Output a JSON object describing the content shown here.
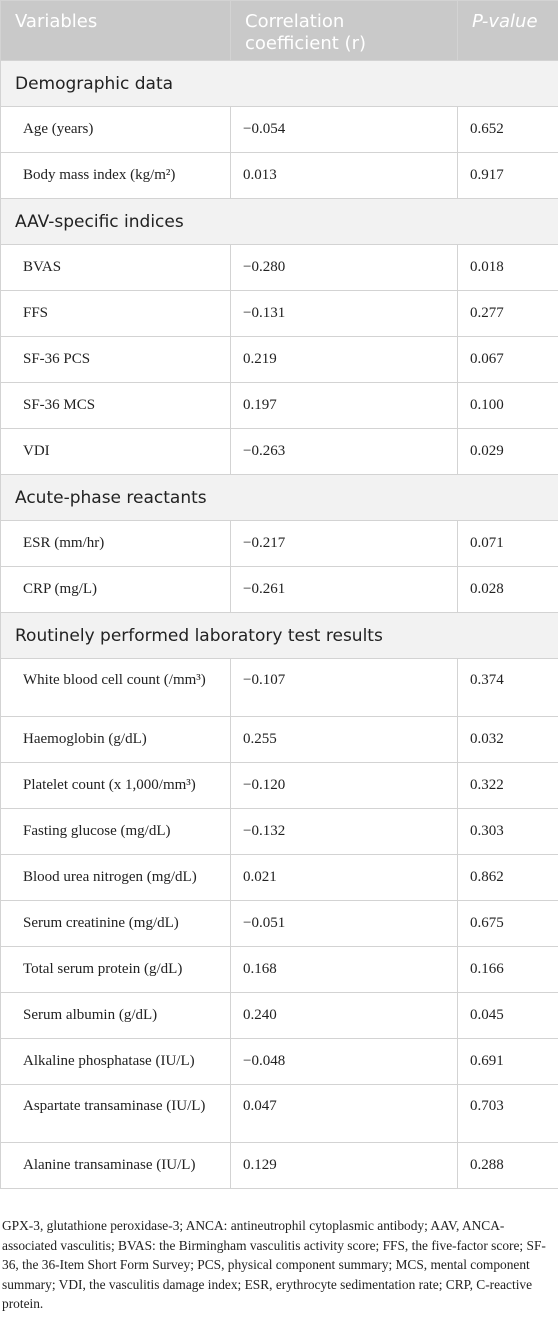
{
  "header": {
    "variables": "Variables",
    "correlation": "Correlation coefficient (r)",
    "pvalue": "P-value"
  },
  "sections": [
    {
      "title": "Demographic data",
      "rows": [
        {
          "label": "Age (years)",
          "r": "−0.054",
          "p": "0.652"
        },
        {
          "label": "Body mass index (kg/m²)",
          "r": "0.013",
          "p": "0.917"
        }
      ]
    },
    {
      "title": "AAV-specific indices",
      "rows": [
        {
          "label": "BVAS",
          "r": "−0.280",
          "p": "0.018"
        },
        {
          "label": "FFS",
          "r": "−0.131",
          "p": "0.277"
        },
        {
          "label": "SF-36 PCS",
          "r": "0.219",
          "p": "0.067"
        },
        {
          "label": "SF-36 MCS",
          "r": "0.197",
          "p": "0.100"
        },
        {
          "label": "VDI",
          "r": "−0.263",
          "p": "0.029"
        }
      ]
    },
    {
      "title": "Acute-phase reactants",
      "rows": [
        {
          "label": "ESR (mm/hr)",
          "r": "−0.217",
          "p": "0.071"
        },
        {
          "label": "CRP (mg/L)",
          "r": "−0.261",
          "p": "0.028"
        }
      ]
    },
    {
      "title": "Routinely performed laboratory test results",
      "rows": [
        {
          "label": "White blood cell count (/mm³)",
          "r": "−0.107",
          "p": "0.374",
          "tall": true
        },
        {
          "label": "Haemoglobin (g/dL)",
          "r": "0.255",
          "p": "0.032"
        },
        {
          "label": "Platelet count (x 1,000/mm³)",
          "r": "−0.120",
          "p": "0.322"
        },
        {
          "label": "Fasting glucose (mg/dL)",
          "r": "−0.132",
          "p": "0.303"
        },
        {
          "label": "Blood urea nitrogen (mg/dL)",
          "r": "0.021",
          "p": "0.862"
        },
        {
          "label": "Serum creatinine (mg/dL)",
          "r": "−0.051",
          "p": "0.675"
        },
        {
          "label": "Total serum protein (g/dL)",
          "r": "0.168",
          "p": "0.166"
        },
        {
          "label": "Serum albumin (g/dL)",
          "r": "0.240",
          "p": "0.045"
        },
        {
          "label": "Alkaline phosphatase (IU/L)",
          "r": "−0.048",
          "p": "0.691"
        },
        {
          "label": "Aspartate transaminase (IU/L)",
          "r": "0.047",
          "p": "0.703",
          "tall": true
        },
        {
          "label": "Alanine transaminase (IU/L)",
          "r": "0.129",
          "p": "0.288"
        }
      ]
    }
  ],
  "footnote": "GPX-3, glutathione peroxidase-3; ANCA: antineutrophil cytoplasmic antibody; AAV, ANCA-associated vasculitis; BVAS: the Birmingham vasculitis activity score; FFS, the five-factor score; SF-36, the 36-Item Short Form Survey; PCS, physical component summary; MCS, mental component summary; VDI, the vasculitis damage index; ESR, erythrocyte sedimentation rate; CRP, C-reactive protein."
}
